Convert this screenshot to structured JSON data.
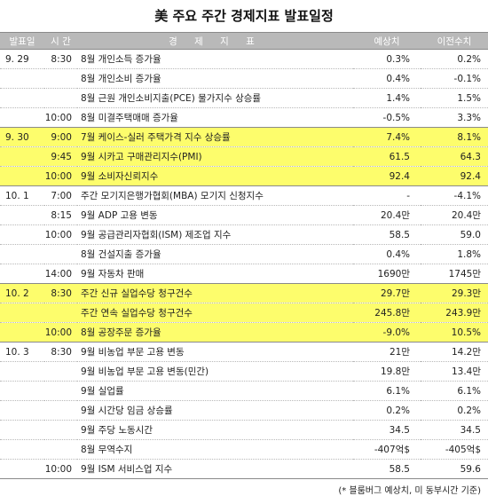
{
  "title": "美 주요 주간 경제지표 발표일정",
  "headers": {
    "date": "발표일",
    "time": "시 간",
    "indicator": "경 제 지 표",
    "forecast": "예상치",
    "previous": "이전수치"
  },
  "rows": [
    {
      "date": "9. 29",
      "time": "8:30",
      "indicator": "8월 개인소득 증가율",
      "forecast": "0.3%",
      "previous": "0.2%",
      "highlight": false,
      "group_start": true
    },
    {
      "date": "",
      "time": "",
      "indicator": "8월 개인소비 증가율",
      "forecast": "0.4%",
      "previous": "-0.1%",
      "highlight": false,
      "group_start": false
    },
    {
      "date": "",
      "time": "",
      "indicator": "8월 근원 개인소비지출(PCE) 물가지수 상승률",
      "forecast": "1.4%",
      "previous": "1.5%",
      "highlight": false,
      "group_start": false
    },
    {
      "date": "",
      "time": "10:00",
      "indicator": "8월 미결주택매매 증가율",
      "forecast": "-0.5%",
      "previous": "3.3%",
      "highlight": false,
      "group_start": false
    },
    {
      "date": "9. 30",
      "time": "9:00",
      "indicator": "7월 케이스-실러 주택가격 지수 상승률",
      "forecast": "7.4%",
      "previous": "8.1%",
      "highlight": true,
      "group_start": true
    },
    {
      "date": "",
      "time": "9:45",
      "indicator": "9월 시카고 구매관리지수(PMI)",
      "forecast": "61.5",
      "previous": "64.3",
      "highlight": true,
      "group_start": false
    },
    {
      "date": "",
      "time": "10:00",
      "indicator": "9월 소비자신뢰지수",
      "forecast": "92.4",
      "previous": "92.4",
      "highlight": true,
      "group_start": false
    },
    {
      "date": "10. 1",
      "time": "7:00",
      "indicator": "주간 모기지은행가협회(MBA) 모기지 신청지수",
      "forecast": "-",
      "previous": "-4.1%",
      "highlight": false,
      "group_start": true
    },
    {
      "date": "",
      "time": "8:15",
      "indicator": "9월 ADP 고용 변동",
      "forecast": "20.4만",
      "previous": "20.4만",
      "highlight": false,
      "group_start": false
    },
    {
      "date": "",
      "time": "10:00",
      "indicator": "9월 공급관리자협회(ISM) 제조업 지수",
      "forecast": "58.5",
      "previous": "59.0",
      "highlight": false,
      "group_start": false
    },
    {
      "date": "",
      "time": "",
      "indicator": "8월 건설지출 증가율",
      "forecast": "0.4%",
      "previous": "1.8%",
      "highlight": false,
      "group_start": false
    },
    {
      "date": "",
      "time": "14:00",
      "indicator": "9월 자동차 판매",
      "forecast": "1690만",
      "previous": "1745만",
      "highlight": false,
      "group_start": false
    },
    {
      "date": "10. 2",
      "time": "8:30",
      "indicator": "주간 신규 실업수당 청구건수",
      "forecast": "29.7만",
      "previous": "29.3만",
      "highlight": true,
      "group_start": true
    },
    {
      "date": "",
      "time": "",
      "indicator": "주간 연속 실업수당 청구건수",
      "forecast": "245.8만",
      "previous": "243.9만",
      "highlight": true,
      "group_start": false
    },
    {
      "date": "",
      "time": "10:00",
      "indicator": "8월 공장주문 증가율",
      "forecast": "-9.0%",
      "previous": "10.5%",
      "highlight": true,
      "group_start": false
    },
    {
      "date": "10. 3",
      "time": "8:30",
      "indicator": "9월 비농업 부문 고용 변동",
      "forecast": "21만",
      "previous": "14.2만",
      "highlight": false,
      "group_start": true
    },
    {
      "date": "",
      "time": "",
      "indicator": "9월 비농업 부문 고용 변동(민간)",
      "forecast": "19.8만",
      "previous": "13.4만",
      "highlight": false,
      "group_start": false
    },
    {
      "date": "",
      "time": "",
      "indicator": "9월 실업률",
      "forecast": "6.1%",
      "previous": "6.1%",
      "highlight": false,
      "group_start": false
    },
    {
      "date": "",
      "time": "",
      "indicator": "9월 시간당 임금 상승률",
      "forecast": "0.2%",
      "previous": "0.2%",
      "highlight": false,
      "group_start": false
    },
    {
      "date": "",
      "time": "",
      "indicator": "9월 주당 노동시간",
      "forecast": "34.5",
      "previous": "34.5",
      "highlight": false,
      "group_start": false
    },
    {
      "date": "",
      "time": "",
      "indicator": "8월 무역수지",
      "forecast": "-407억$",
      "previous": "-405억$",
      "highlight": false,
      "group_start": false
    },
    {
      "date": "",
      "time": "10:00",
      "indicator": "9월 ISM 서비스업 지수",
      "forecast": "58.5",
      "previous": "59.6",
      "highlight": false,
      "group_start": false
    }
  ],
  "footnote": "(* 블룸버그 예상치, 미 동부시간 기준)"
}
